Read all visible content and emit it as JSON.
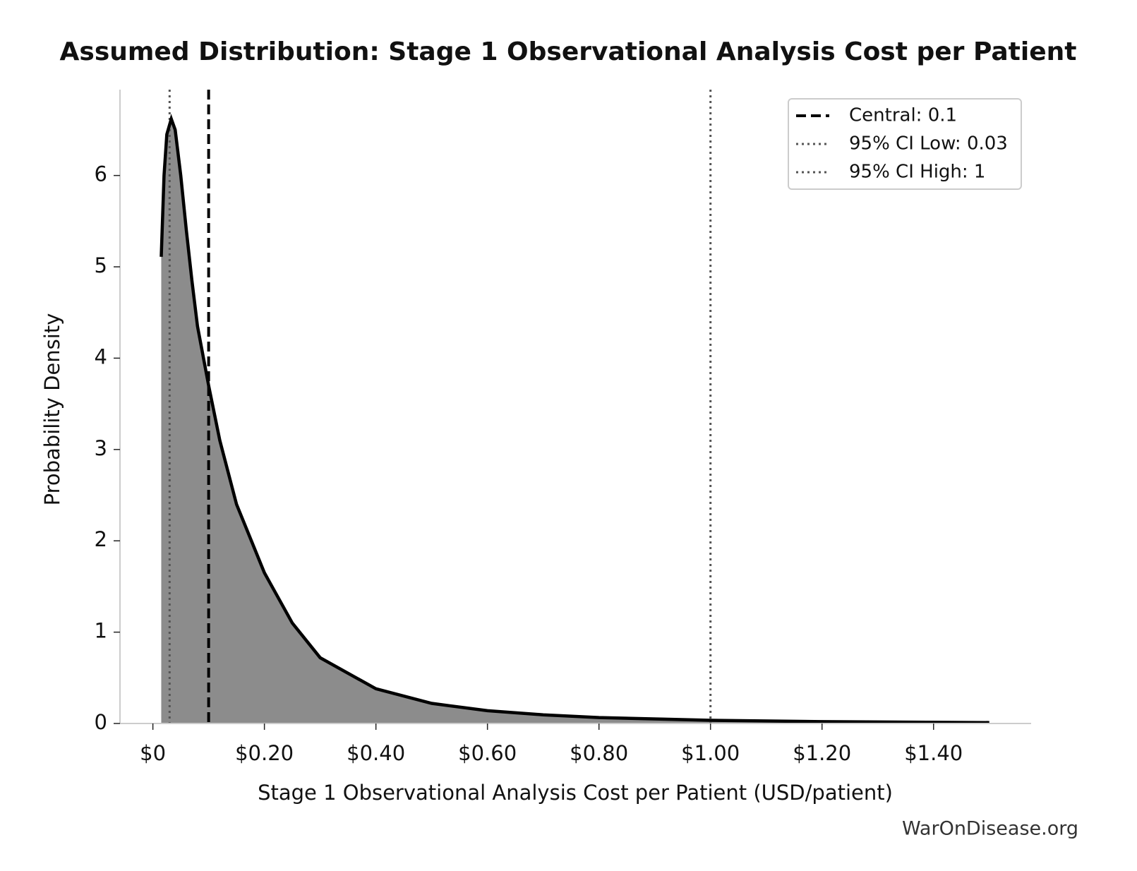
{
  "chart_data": {
    "type": "density",
    "title": "Assumed Distribution: Stage 1 Observational Analysis Cost per Patient",
    "x_label": "Stage 1 Observational Analysis Cost per Patient (USD/patient)",
    "y_label": "Probability Density",
    "watermark": "WarOnDisease.org",
    "x": [
      0.015,
      0.02,
      0.025,
      0.033,
      0.04,
      0.05,
      0.06,
      0.07,
      0.08,
      0.1,
      0.12,
      0.15,
      0.2,
      0.25,
      0.3,
      0.4,
      0.5,
      0.6,
      0.7,
      0.8,
      1.0,
      1.2,
      1.5
    ],
    "values": [
      5.11,
      6.0,
      6.45,
      6.62,
      6.5,
      6.0,
      5.4,
      4.85,
      4.35,
      3.7,
      3.1,
      2.4,
      1.65,
      1.1,
      0.72,
      0.38,
      0.22,
      0.14,
      0.095,
      0.065,
      0.035,
      0.02,
      0.01
    ],
    "color": "#000000",
    "fill_color": "#8c8c8c",
    "reference_lines": [
      {
        "label": "Central: 0.1",
        "value": 0.1,
        "style": "dashed",
        "color": "#000000"
      },
      {
        "label": "95% CI Low: 0.03",
        "value": 0.03,
        "style": "dotted",
        "color": "#555555"
      },
      {
        "label": "95% CI High: 1",
        "value": 1,
        "style": "dotted",
        "color": "#555555"
      }
    ],
    "xlim": [
      -0.059,
      1.575
    ],
    "ylim": [
      0,
      6.94
    ],
    "xticks": [
      {
        "value": 0,
        "label": "$0"
      },
      {
        "value": 0.2,
        "label": "$0.20"
      },
      {
        "value": 0.4,
        "label": "$0.40"
      },
      {
        "value": 0.6,
        "label": "$0.60"
      },
      {
        "value": 0.8,
        "label": "$0.80"
      },
      {
        "value": 1.0,
        "label": "$1.00"
      },
      {
        "value": 1.2,
        "label": "$1.20"
      },
      {
        "value": 1.4,
        "label": "$1.40"
      }
    ],
    "yticks": [
      0,
      1,
      2,
      3,
      4,
      5,
      6
    ],
    "grid": false,
    "legend": "upper right"
  }
}
